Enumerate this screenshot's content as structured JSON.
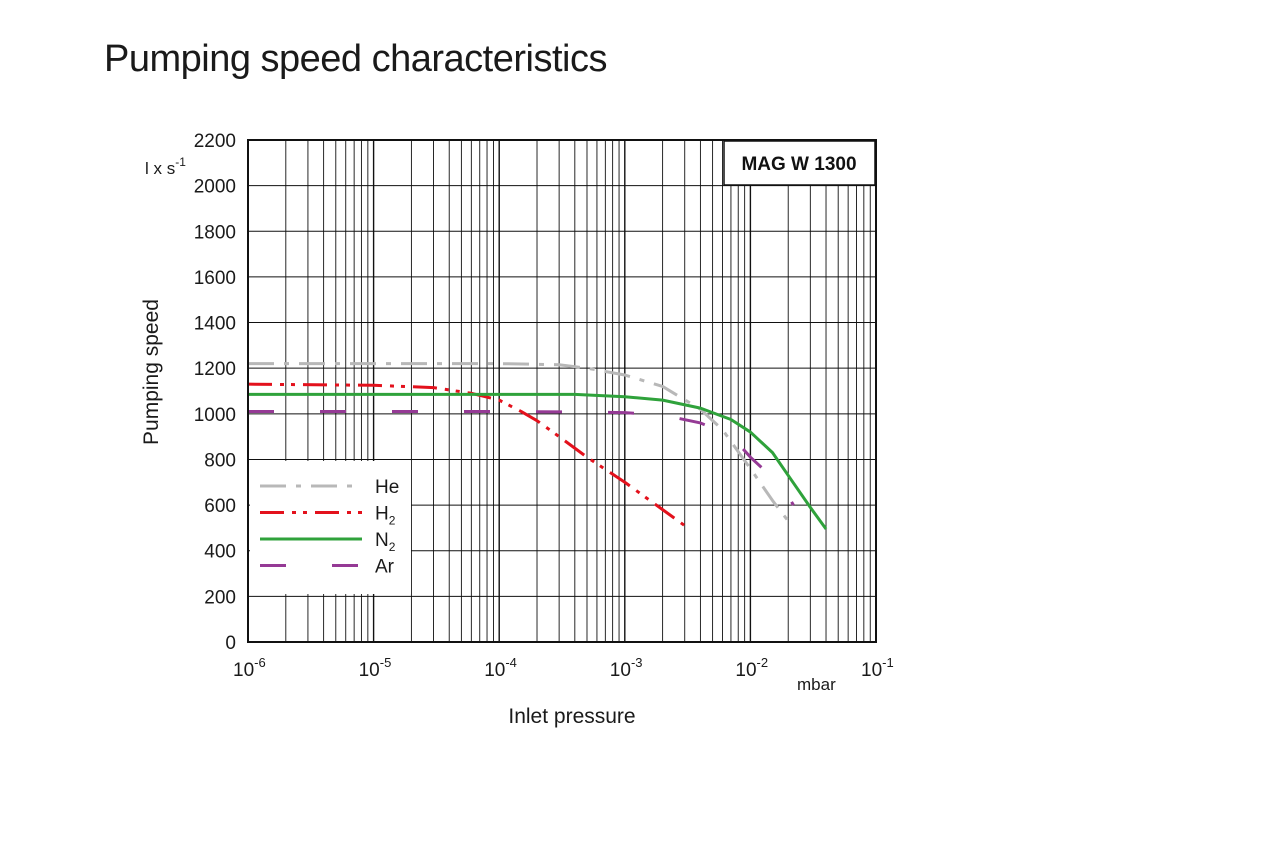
{
  "page": {
    "title": "Pumping speed characteristics"
  },
  "chart_data": {
    "type": "line",
    "model_label": "MAG W 1300",
    "xlabel": "Inlet pressure",
    "xunit": "mbar",
    "ylabel": "Pumping speed",
    "yunit": {
      "base": "l x s",
      "sup": "-1"
    },
    "xscale": "log",
    "xlim": [
      1e-06,
      0.1
    ],
    "xticks": [
      {
        "base": "10",
        "exp": "-6",
        "value": 1e-06
      },
      {
        "base": "10",
        "exp": "-5",
        "value": 1e-05
      },
      {
        "base": "10",
        "exp": "-4",
        "value": 0.0001
      },
      {
        "base": "10",
        "exp": "-3",
        "value": 0.001
      },
      {
        "base": "10",
        "exp": "-2",
        "value": 0.01
      },
      {
        "base": "10",
        "exp": "-1",
        "value": 0.1
      }
    ],
    "ylim": [
      0,
      2200
    ],
    "yticks": [
      "0",
      "200",
      "400",
      "600",
      "800",
      "1000",
      "1200",
      "1400",
      "1600",
      "1800",
      "2000",
      "2200"
    ],
    "grid": true,
    "legend_position": "bottom-left",
    "series": [
      {
        "name": "He",
        "label_base": "He",
        "label_sub": "",
        "color": "#b8b8b8",
        "style": "dash-dot",
        "x": [
          1e-06,
          1e-05,
          0.0001,
          0.0003,
          0.0005,
          0.001,
          0.002,
          0.004,
          0.006,
          0.01,
          0.015,
          0.02
        ],
        "y": [
          1220,
          1220,
          1220,
          1215,
          1200,
          1170,
          1120,
          1020,
          930,
          760,
          620,
          530
        ]
      },
      {
        "name": "H2",
        "label_base": "H",
        "label_sub": "2",
        "color": "#e3111c",
        "style": "dash-dot-dot",
        "x": [
          1e-06,
          1e-05,
          3e-05,
          6e-05,
          0.0001,
          0.00015,
          0.0002,
          0.0003,
          0.0005,
          0.001,
          0.002,
          0.003
        ],
        "y": [
          1130,
          1125,
          1115,
          1090,
          1060,
          1010,
          970,
          900,
          810,
          700,
          580,
          510
        ]
      },
      {
        "name": "N2",
        "label_base": "N",
        "label_sub": "2",
        "color": "#2fa23b",
        "style": "solid",
        "x": [
          1e-06,
          1e-05,
          0.0001,
          0.0004,
          0.001,
          0.002,
          0.004,
          0.007,
          0.01,
          0.015,
          0.02,
          0.03,
          0.04
        ],
        "y": [
          1085,
          1085,
          1085,
          1085,
          1075,
          1060,
          1025,
          975,
          920,
          830,
          730,
          590,
          495
        ]
      },
      {
        "name": "Ar",
        "label_base": "Ar",
        "label_sub": "",
        "color": "#953a95",
        "style": "long-dash",
        "x": [
          1e-06,
          1e-05,
          0.0001,
          0.0005,
          0.001,
          0.002,
          0.004,
          0.006,
          0.008,
          0.01,
          0.015,
          0.02,
          0.022
        ],
        "y": [
          1010,
          1010,
          1010,
          1008,
          1005,
          995,
          960,
          920,
          870,
          810,
          720,
          640,
          600
        ]
      }
    ]
  }
}
